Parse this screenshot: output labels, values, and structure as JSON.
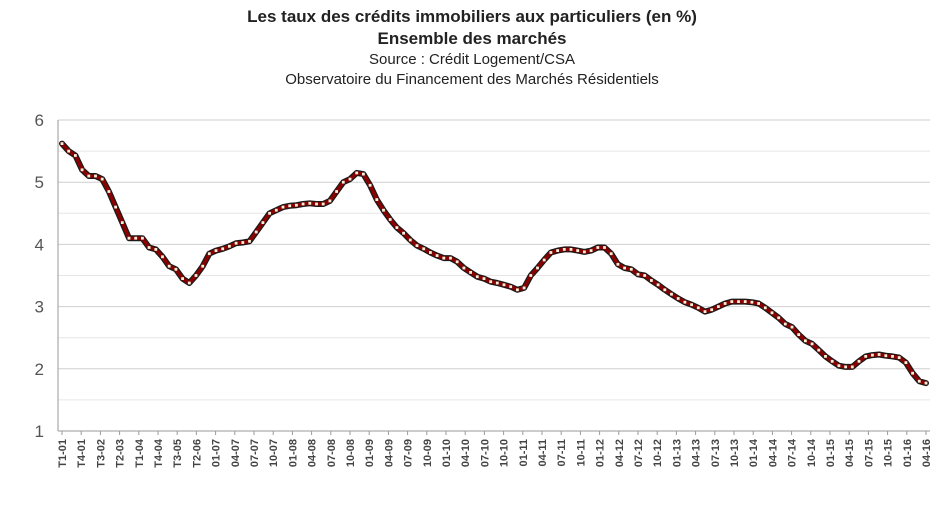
{
  "chart_data": {
    "type": "line",
    "title": "Les taux des crédits immobiliers aux particuliers (en %)",
    "subtitle": "Ensemble des marchés",
    "source": "Source : Crédit Logement/CSA",
    "source2": "Observatoire du Financement des Marchés Résidentiels",
    "ylim": [
      1,
      6
    ],
    "yticks": [
      "1",
      "2",
      "3",
      "4",
      "5",
      "6"
    ],
    "grid": true,
    "line_color": "#8b0000",
    "marker_color": "#f5f0dc",
    "xtick_labels": [
      "T1-01",
      "T4-01",
      "T3-02",
      "T2-03",
      "T1-04",
      "T4-04",
      "T3-05",
      "T2-06",
      "01-07",
      "04-07",
      "07-07",
      "10-07",
      "01-08",
      "04-08",
      "07-08",
      "10-08",
      "01-09",
      "04-09",
      "07-09",
      "10-09",
      "01-10",
      "04-10",
      "07-10",
      "10-10",
      "01-11",
      "04-11",
      "07-11",
      "10-11",
      "01-12",
      "04-12",
      "07-12",
      "10-12",
      "01-13",
      "04-13",
      "07-13",
      "10-13",
      "01-14",
      "04-14",
      "07-14",
      "10-14",
      "01-15",
      "04-15",
      "07-15",
      "10-15",
      "01-16",
      "04-16"
    ],
    "series": [
      {
        "values": [
          5.62,
          5.5,
          5.43,
          5.2,
          5.1,
          5.1,
          5.05,
          4.85,
          4.6,
          4.35,
          4.1,
          4.1,
          4.1,
          3.95,
          3.92,
          3.8,
          3.65,
          3.6,
          3.45,
          3.38,
          3.5,
          3.65,
          3.85,
          3.9,
          3.93,
          3.97,
          4.02,
          4.03,
          4.05,
          4.2,
          4.35,
          4.5,
          4.55,
          4.6,
          4.62,
          4.63,
          4.65,
          4.66,
          4.65,
          4.65,
          4.7,
          4.85,
          5.0,
          5.05,
          5.15,
          5.13,
          4.95,
          4.72,
          4.55,
          4.4,
          4.27,
          4.18,
          4.07,
          3.98,
          3.93,
          3.87,
          3.82,
          3.78,
          3.78,
          3.72,
          3.62,
          3.55,
          3.48,
          3.45,
          3.4,
          3.38,
          3.35,
          3.32,
          3.27,
          3.3,
          3.5,
          3.62,
          3.75,
          3.87,
          3.9,
          3.92,
          3.92,
          3.9,
          3.88,
          3.9,
          3.95,
          3.95,
          3.85,
          3.68,
          3.62,
          3.6,
          3.52,
          3.5,
          3.42,
          3.35,
          3.27,
          3.2,
          3.13,
          3.07,
          3.03,
          2.98,
          2.92,
          2.95,
          3.0,
          3.05,
          3.08,
          3.08,
          3.08,
          3.07,
          3.05,
          2.98,
          2.9,
          2.82,
          2.72,
          2.67,
          2.55,
          2.45,
          2.4,
          2.3,
          2.2,
          2.12,
          2.05,
          2.03,
          2.03,
          2.12,
          2.2,
          2.22,
          2.23,
          2.21,
          2.2,
          2.18,
          2.1,
          1.93,
          1.8,
          1.77
        ]
      }
    ]
  }
}
